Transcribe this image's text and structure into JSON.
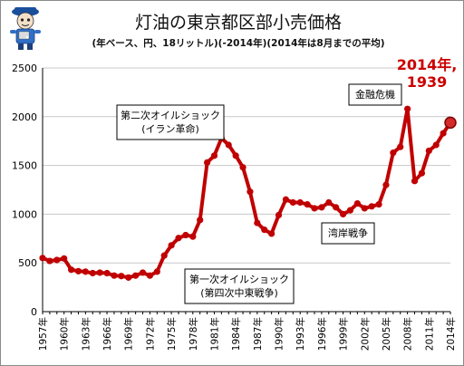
{
  "chart_data": {
    "type": "line",
    "title": "灯油の東京都区部小売価格",
    "subtitle": "(年ベース、円、18リットル)(-2014年)(2014年は8月までの平均)",
    "xlabel": "",
    "ylabel": "",
    "ylim": [
      0,
      2500
    ],
    "yticks": [
      0,
      500,
      1000,
      1500,
      2000,
      2500
    ],
    "xlim": [
      1957,
      2014
    ],
    "xtick_labels": [
      "1957年",
      "1960年",
      "1963年",
      "1966年",
      "1969年",
      "1972年",
      "1975年",
      "1978年",
      "1981年",
      "1984年",
      "1987年",
      "1990年",
      "1993年",
      "1996年",
      "1999年",
      "2002年",
      "2005年",
      "2008年",
      "2011年",
      "2014年"
    ],
    "grid": true,
    "legend": "none",
    "series": [
      {
        "color": "#c00000",
        "x": [
          1957,
          1958,
          1959,
          1960,
          1961,
          1962,
          1963,
          1964,
          1965,
          1966,
          1967,
          1968,
          1969,
          1970,
          1971,
          1972,
          1973,
          1974,
          1975,
          1976,
          1977,
          1978,
          1979,
          1980,
          1981,
          1982,
          1983,
          1984,
          1985,
          1986,
          1987,
          1988,
          1989,
          1990,
          1991,
          1992,
          1993,
          1994,
          1995,
          1996,
          1997,
          1998,
          1999,
          2000,
          2001,
          2002,
          2003,
          2004,
          2005,
          2006,
          2007,
          2008,
          2009,
          2010,
          2011,
          2012,
          2013,
          2014
        ],
        "y": [
          550,
          520,
          530,
          545,
          430,
          415,
          410,
          395,
          400,
          395,
          370,
          365,
          350,
          370,
          400,
          370,
          410,
          575,
          680,
          755,
          785,
          770,
          940,
          1530,
          1600,
          1780,
          1710,
          1600,
          1480,
          1230,
          910,
          840,
          800,
          990,
          1150,
          1120,
          1120,
          1100,
          1060,
          1070,
          1120,
          1070,
          1000,
          1040,
          1110,
          1060,
          1080,
          1100,
          1300,
          1630,
          1690,
          2080,
          1340,
          1420,
          1650,
          1710,
          1830,
          1939
        ]
      }
    ],
    "annotations": [
      {
        "id": "oil-shock-2",
        "lines": [
          "第二次オイルショック",
          "(イラン革命)"
        ]
      },
      {
        "id": "oil-shock-1",
        "lines": [
          "第一次オイルショック",
          "(第四次中東戦争)"
        ]
      },
      {
        "id": "financial-crisis",
        "lines": [
          "金融危機"
        ]
      },
      {
        "id": "gulf-war",
        "lines": [
          "湾岸戦争"
        ]
      },
      {
        "id": "last-point",
        "lines": [
          "2014年,",
          "1939"
        ]
      }
    ]
  },
  "colors": {
    "line": "#c00000",
    "highlight": "#cc0000",
    "grid": "#c8c8c8",
    "axis": "#000000",
    "mascot": "#1a4f9c"
  },
  "mascot_icon": "reporter-mascot-icon"
}
